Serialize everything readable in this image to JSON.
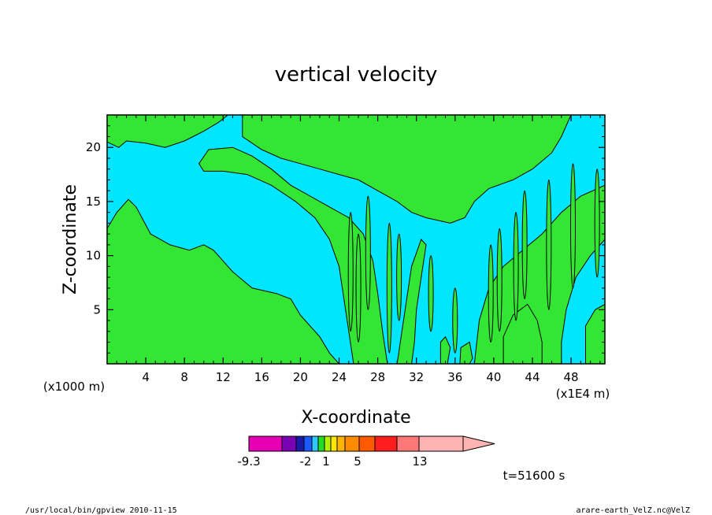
{
  "chart_data": {
    "type": "heatmap",
    "title": "vertical velocity",
    "xlabel": "X-coordinate",
    "ylabel": "Z-coordinate",
    "x_unit_left": "(x1000 m)",
    "x_unit_right": "(x1E4 m)",
    "xlim": [
      0,
      51.5
    ],
    "ylim": [
      0,
      23
    ],
    "x_ticks": [
      4,
      8,
      12,
      16,
      20,
      24,
      28,
      32,
      36,
      40,
      44,
      48
    ],
    "y_ticks": [
      5,
      10,
      15,
      20
    ],
    "grid": false,
    "field_description_levels": {
      "negative_color": "#00e6ff",
      "positive_color": "#33e633"
    },
    "colorbar": {
      "colors": [
        "#e600b4",
        "#7a00b4",
        "#1a1aa6",
        "#1a5aff",
        "#2ec8ff",
        "#22dd22",
        "#b4f000",
        "#ffe600",
        "#ffb400",
        "#ff8c00",
        "#ff5a00",
        "#ff1e1e",
        "#ff7878",
        "#ffb4b4"
      ],
      "tick_labels": [
        "-9.3",
        "-2",
        "1",
        "5",
        "13"
      ]
    },
    "time_label": "t=51600 s",
    "footer_left": "/usr/local/bin/gpview  2010-11-15",
    "footer_right": "arare-earth_VelZ.nc@VelZ"
  }
}
